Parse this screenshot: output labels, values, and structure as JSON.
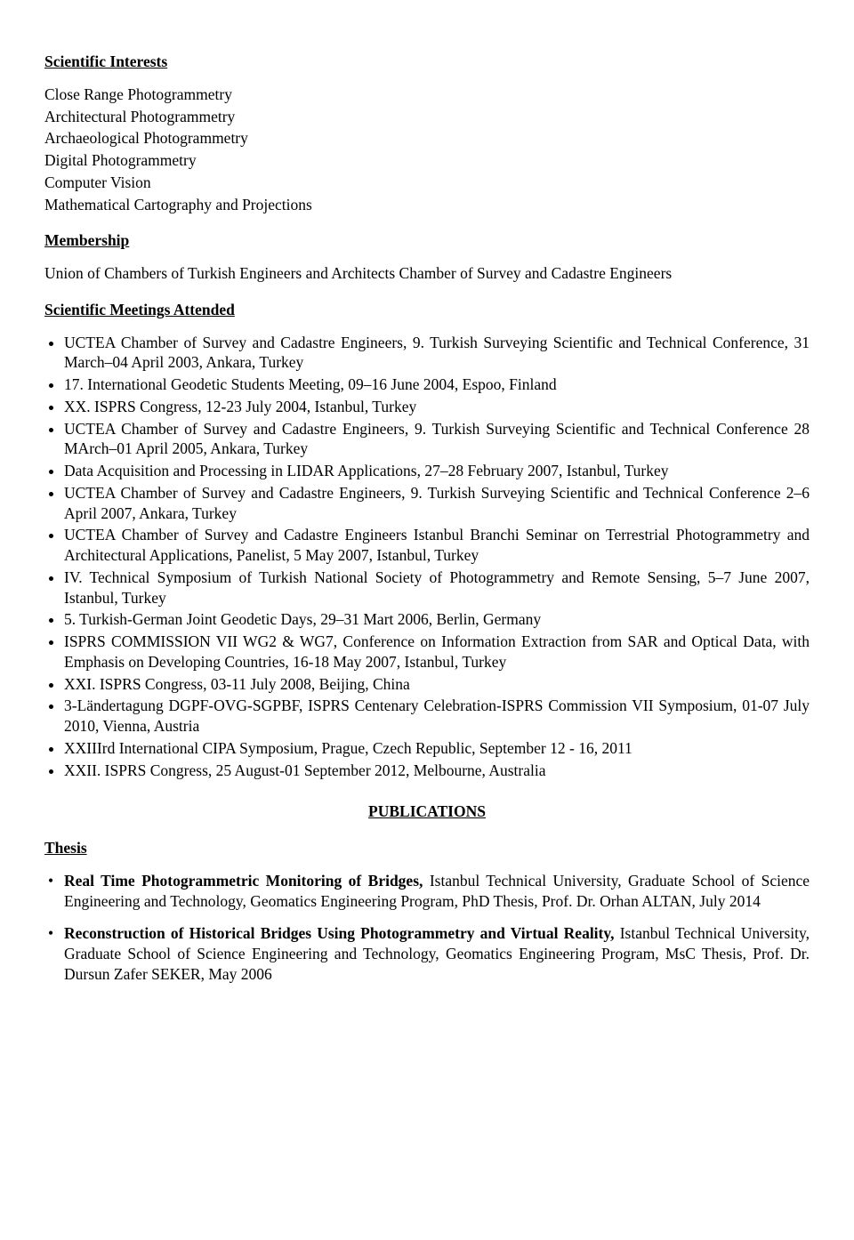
{
  "sections": {
    "scientific_interests": {
      "heading": "Scientific Interests",
      "items": [
        "Close Range Photogrammetry",
        "Architectural Photogrammetry",
        "Archaeological Photogrammetry",
        "Digital Photogrammetry",
        "Computer Vision",
        "Mathematical Cartography and Projections"
      ]
    },
    "membership": {
      "heading": "Membership",
      "text": "Union of Chambers of Turkish Engineers and Architects Chamber of Survey and Cadastre Engineers"
    },
    "meetings": {
      "heading": "Scientific Meetings Attended",
      "items": [
        "UCTEA Chamber of Survey and Cadastre Engineers, 9. Turkish  Surveying Scientific and Technical Conference, 31 March–04 April 2003, Ankara, Turkey",
        "17. International Geodetic Students Meeting, 09–16 June 2004, Espoo, Finland",
        "XX. ISPRS Congress, 12-23 July 2004, Istanbul, Turkey",
        "UCTEA Chamber of Survey and Cadastre Engineers, 9. Turkish  Surveying Scientific and Technical Conference 28 MArch–01 April 2005, Ankara, Turkey",
        "Data Acquisition and Processing in LIDAR Applications, 27–28 February 2007, Istanbul, Turkey",
        "UCTEA Chamber of Survey and Cadastre Engineers, 9. Turkish  Surveying Scientific and Technical Conference 2–6 April 2007, Ankara, Turkey",
        "UCTEA Chamber of Survey and Cadastre Engineers Istanbul Branchi Seminar on Terrestrial Photogrammetry and Architectural Applications, Panelist, 5 May 2007, Istanbul, Turkey",
        "IV. Technical Symposium of Turkish National Society of Photogrammetry and Remote Sensing, 5–7 June 2007, Istanbul, Turkey",
        "5. Turkish-German Joint Geodetic Days, 29–31 Mart 2006, Berlin, Germany",
        "ISPRS COMMISSION VII WG2 & WG7, Conference on Information Extraction from SAR and Optical Data, with Emphasis on Developing Countries, 16-18 May 2007, Istanbul, Turkey",
        "XXI. ISPRS Congress, 03-11 July 2008, Beijing, China",
        "3-Ländertagung DGPF-OVG-SGPBF, ISPRS Centenary Celebration-ISPRS Commission VII Symposium, 01-07 July 2010, Vienna, Austria",
        "XXIIIrd International CIPA Symposium, Prague, Czech Republic, September 12 - 16, 2011",
        "XXII. ISPRS Congress, 25 August-01 September 2012, Melbourne, Australia"
      ]
    },
    "publications": {
      "heading": "PUBLICATIONS"
    },
    "thesis": {
      "heading": "Thesis",
      "items": [
        {
          "title": "Real Time Photogrammetric Monitoring of Bridges, ",
          "rest": "Istanbul Technical University, Graduate School of Science Engineering and Technology, Geomatics Engineering Program, PhD Thesis, Prof. Dr. Orhan ALTAN, July 2014"
        },
        {
          "title": "Reconstruction of Historical Bridges Using Photogrammetry and Virtual Reality, ",
          "rest": "Istanbul Technical University, Graduate School of Science Engineering and Technology, Geomatics Engineering Program, MsC Thesis, Prof. Dr. Dursun Zafer SEKER, May 2006"
        }
      ]
    }
  }
}
